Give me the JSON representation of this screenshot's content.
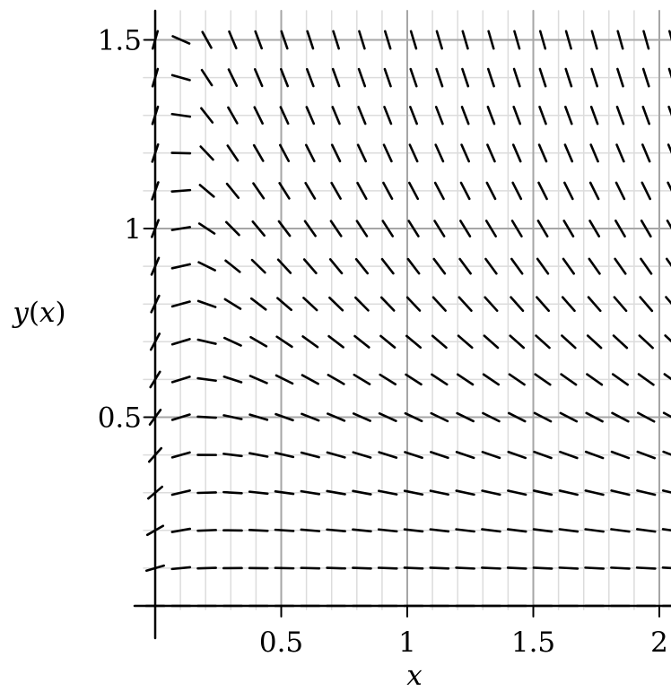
{
  "chart_data": {
    "type": "slope-field",
    "title": "",
    "xlabel": "x",
    "ylabel_parts": {
      "func": "y",
      "open": "(",
      "var": "x",
      "close": ")"
    },
    "xlim": [
      0,
      2.05
    ],
    "ylim": [
      -0.03,
      1.56
    ],
    "x_major_ticks": [
      0.5,
      1,
      1.5,
      2
    ],
    "x_major_tick_labels": [
      "0.5",
      "1",
      "1.5",
      "2"
    ],
    "y_major_ticks": [
      0.5,
      1,
      1.5
    ],
    "y_major_tick_labels": [
      "0.5",
      "1",
      "1.5"
    ],
    "x_minor_step": 0.1,
    "y_minor_step": 0.1,
    "grid": true,
    "field_x_range": [
      0,
      2.05
    ],
    "field_x_count": 21,
    "field_y_range": [
      0,
      1.5
    ],
    "field_y_count": 16,
    "slope_expression": "y - 3*x*y^2 + x*y/(1+x^2) ... approximated: dy/dx = y/x - 3 y^2 - x y /(1+x) ",
    "segment_fraction": 0.7
  },
  "colors": {
    "background": "#ffffff",
    "axis": "#000000",
    "major_grid": "#a6a6a6",
    "minor_grid": "#dcdcdc",
    "segment": "#000000"
  }
}
